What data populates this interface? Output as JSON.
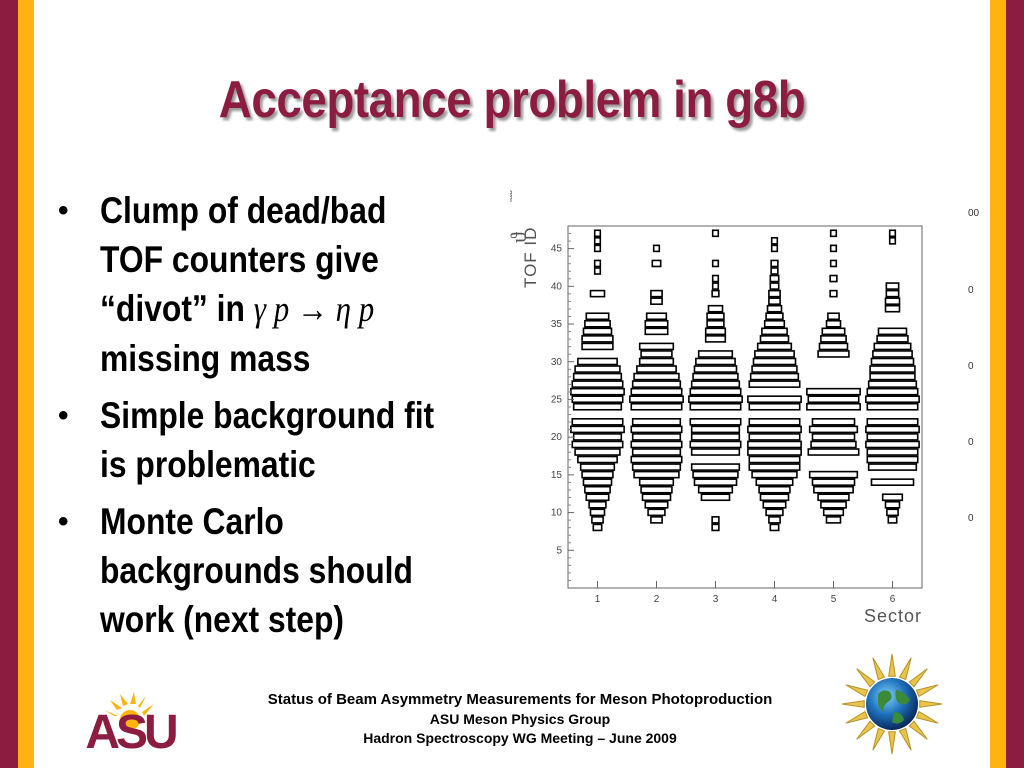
{
  "slide": {
    "title": "Acceptance problem in g8b",
    "bullets": [
      {
        "lines": [
          "Clump of dead/bad",
          "TOF counters give"
        ],
        "line3_prefix": "“divot” in ",
        "formula": "γ p → η p",
        "line4": "missing mass"
      },
      {
        "lines": [
          "Simple background fit",
          "is problematic"
        ]
      },
      {
        "lines": [
          "Monte Carlo",
          "backgrounds should",
          "work (next step)"
        ]
      }
    ],
    "footer": {
      "line1": "Status of Beam Asymmetry Measurements for Meson Photoproduction",
      "line2": "ASU Meson Physics Group",
      "line3": "Hadron Spectroscopy WG Meeting – June 2009"
    },
    "logo_text": "ASU",
    "colors": {
      "maroon": "#8c1d40",
      "gold": "#ffb310"
    }
  },
  "chart_data": {
    "type": "heatmap",
    "style": "box",
    "ylabel": "TOF ID",
    "xlabel": "Sector",
    "x_ticks": [
      1,
      2,
      3,
      4,
      5,
      6
    ],
    "y_ticks": [
      5,
      10,
      15,
      20,
      25,
      30,
      35,
      40,
      45
    ],
    "xlim": [
      0.5,
      6.5
    ],
    "ylim": [
      0,
      48
    ],
    "right_clipped_labels": [
      "00",
      "0",
      "0",
      "0",
      "0"
    ],
    "sectors": [
      {
        "sector": 1,
        "widths": {
          "8": 0.15,
          "9": 0.2,
          "10": 0.25,
          "11": 0.3,
          "12": 0.4,
          "13": 0.45,
          "14": 0.5,
          "15": 0.55,
          "16": 0.6,
          "17": 0.7,
          "18": 0.8,
          "19": 0.9,
          "20": 0.85,
          "21": 0.95,
          "22": 0.9,
          "24": 0.85,
          "25": 0.9,
          "26": 0.95,
          "27": 0.9,
          "28": 0.85,
          "29": 0.8,
          "30": 0.7,
          "32": 0.55,
          "33": 0.55,
          "34": 0.5,
          "35": 0.45,
          "36": 0.4,
          "39": 0.25,
          "42": 0.1,
          "43": 0.1,
          "45": 0.1,
          "46": 0.1,
          "47": 0.1
        }
      },
      {
        "sector": 2,
        "widths": {
          "9": 0.2,
          "10": 0.3,
          "11": 0.4,
          "12": 0.5,
          "13": 0.55,
          "14": 0.6,
          "15": 0.8,
          "16": 0.85,
          "17": 0.9,
          "18": 0.85,
          "19": 0.9,
          "20": 0.85,
          "21": 0.9,
          "22": 0.85,
          "24": 0.9,
          "25": 0.95,
          "26": 0.9,
          "27": 0.85,
          "28": 0.8,
          "29": 0.7,
          "30": 0.6,
          "31": 0.55,
          "32": 0.6,
          "34": 0.4,
          "35": 0.4,
          "36": 0.35,
          "38": 0.2,
          "39": 0.2,
          "43": 0.15,
          "45": 0.1
        }
      },
      {
        "sector": 3,
        "widths": {
          "8": 0.12,
          "9": 0.12,
          "12": 0.5,
          "13": 0.6,
          "14": 0.75,
          "15": 0.8,
          "16": 0.85,
          "18": 0.85,
          "19": 0.9,
          "20": 0.85,
          "21": 0.85,
          "22": 0.9,
          "24": 0.9,
          "25": 0.95,
          "26": 0.9,
          "27": 0.85,
          "28": 0.8,
          "29": 0.75,
          "30": 0.7,
          "31": 0.6,
          "33": 0.35,
          "34": 0.35,
          "35": 0.3,
          "36": 0.3,
          "37": 0.25,
          "39": 0.12,
          "40": 0.1,
          "41": 0.1,
          "43": 0.1,
          "47": 0.1
        }
      },
      {
        "sector": 4,
        "widths": {
          "8": 0.15,
          "9": 0.2,
          "10": 0.3,
          "11": 0.4,
          "12": 0.5,
          "13": 0.55,
          "14": 0.65,
          "15": 0.8,
          "16": 0.9,
          "17": 0.9,
          "18": 0.95,
          "19": 0.95,
          "20": 0.9,
          "21": 0.95,
          "22": 0.9,
          "24": 0.9,
          "25": 0.95,
          "27": 0.9,
          "28": 0.85,
          "29": 0.8,
          "30": 0.75,
          "31": 0.7,
          "32": 0.6,
          "33": 0.5,
          "34": 0.45,
          "35": 0.35,
          "36": 0.3,
          "37": 0.25,
          "38": 0.2,
          "39": 0.2,
          "40": 0.15,
          "41": 0.15,
          "42": 0.12,
          "43": 0.12,
          "45": 0.1,
          "46": 0.1
        }
      },
      {
        "sector": 5,
        "widths": {
          "9": 0.25,
          "10": 0.35,
          "11": 0.45,
          "12": 0.55,
          "13": 0.7,
          "14": 0.75,
          "15": 0.85,
          "18": 0.9,
          "19": 0.8,
          "20": 0.75,
          "21": 0.85,
          "22": 0.75,
          "24": 0.95,
          "25": 0.9,
          "26": 0.95,
          "31": 0.55,
          "32": 0.5,
          "33": 0.45,
          "34": 0.4,
          "35": 0.25,
          "36": 0.2,
          "39": 0.12,
          "41": 0.12,
          "43": 0.1,
          "45": 0.1,
          "47": 0.1
        }
      },
      {
        "sector": 6,
        "widths": {
          "9": 0.15,
          "10": 0.2,
          "11": 0.25,
          "12": 0.35,
          "14": 0.75,
          "16": 0.85,
          "17": 0.9,
          "18": 0.9,
          "19": 0.95,
          "20": 0.9,
          "21": 0.95,
          "22": 0.9,
          "24": 0.9,
          "25": 0.95,
          "26": 0.9,
          "27": 0.85,
          "28": 0.8,
          "29": 0.8,
          "30": 0.75,
          "31": 0.7,
          "32": 0.65,
          "33": 0.55,
          "34": 0.5,
          "37": 0.25,
          "38": 0.25,
          "39": 0.22,
          "40": 0.22,
          "46": 0.1,
          "47": 0.1
        }
      }
    ]
  }
}
